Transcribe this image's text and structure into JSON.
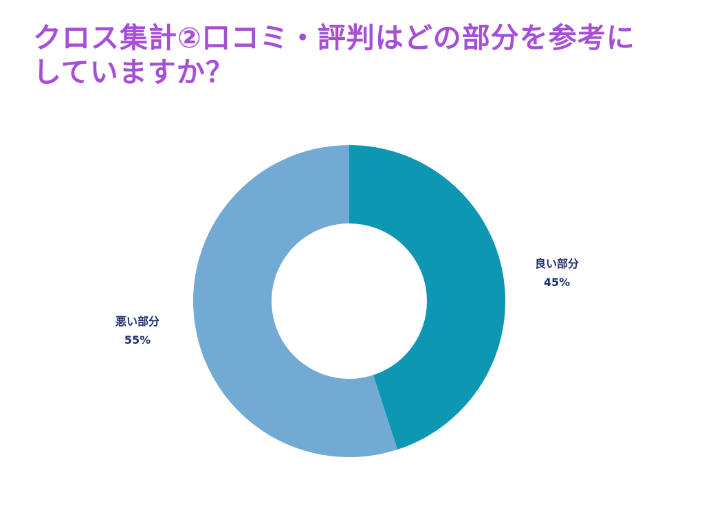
{
  "title": {
    "line1": "クロス集計②口コミ・評判はどの部分を参考に",
    "line2": "していますか？",
    "color": "#a64fd6"
  },
  "chart_data": {
    "type": "pie",
    "donut": true,
    "categories": [
      "良い部分",
      "悪い部分"
    ],
    "values": [
      45,
      55
    ],
    "value_labels": [
      "45%",
      "55%"
    ],
    "colors": [
      "#0e97b2",
      "#71aad3"
    ],
    "label_color": "#1d2e6e",
    "start": "12 o'clock",
    "direction": "clockwise"
  }
}
